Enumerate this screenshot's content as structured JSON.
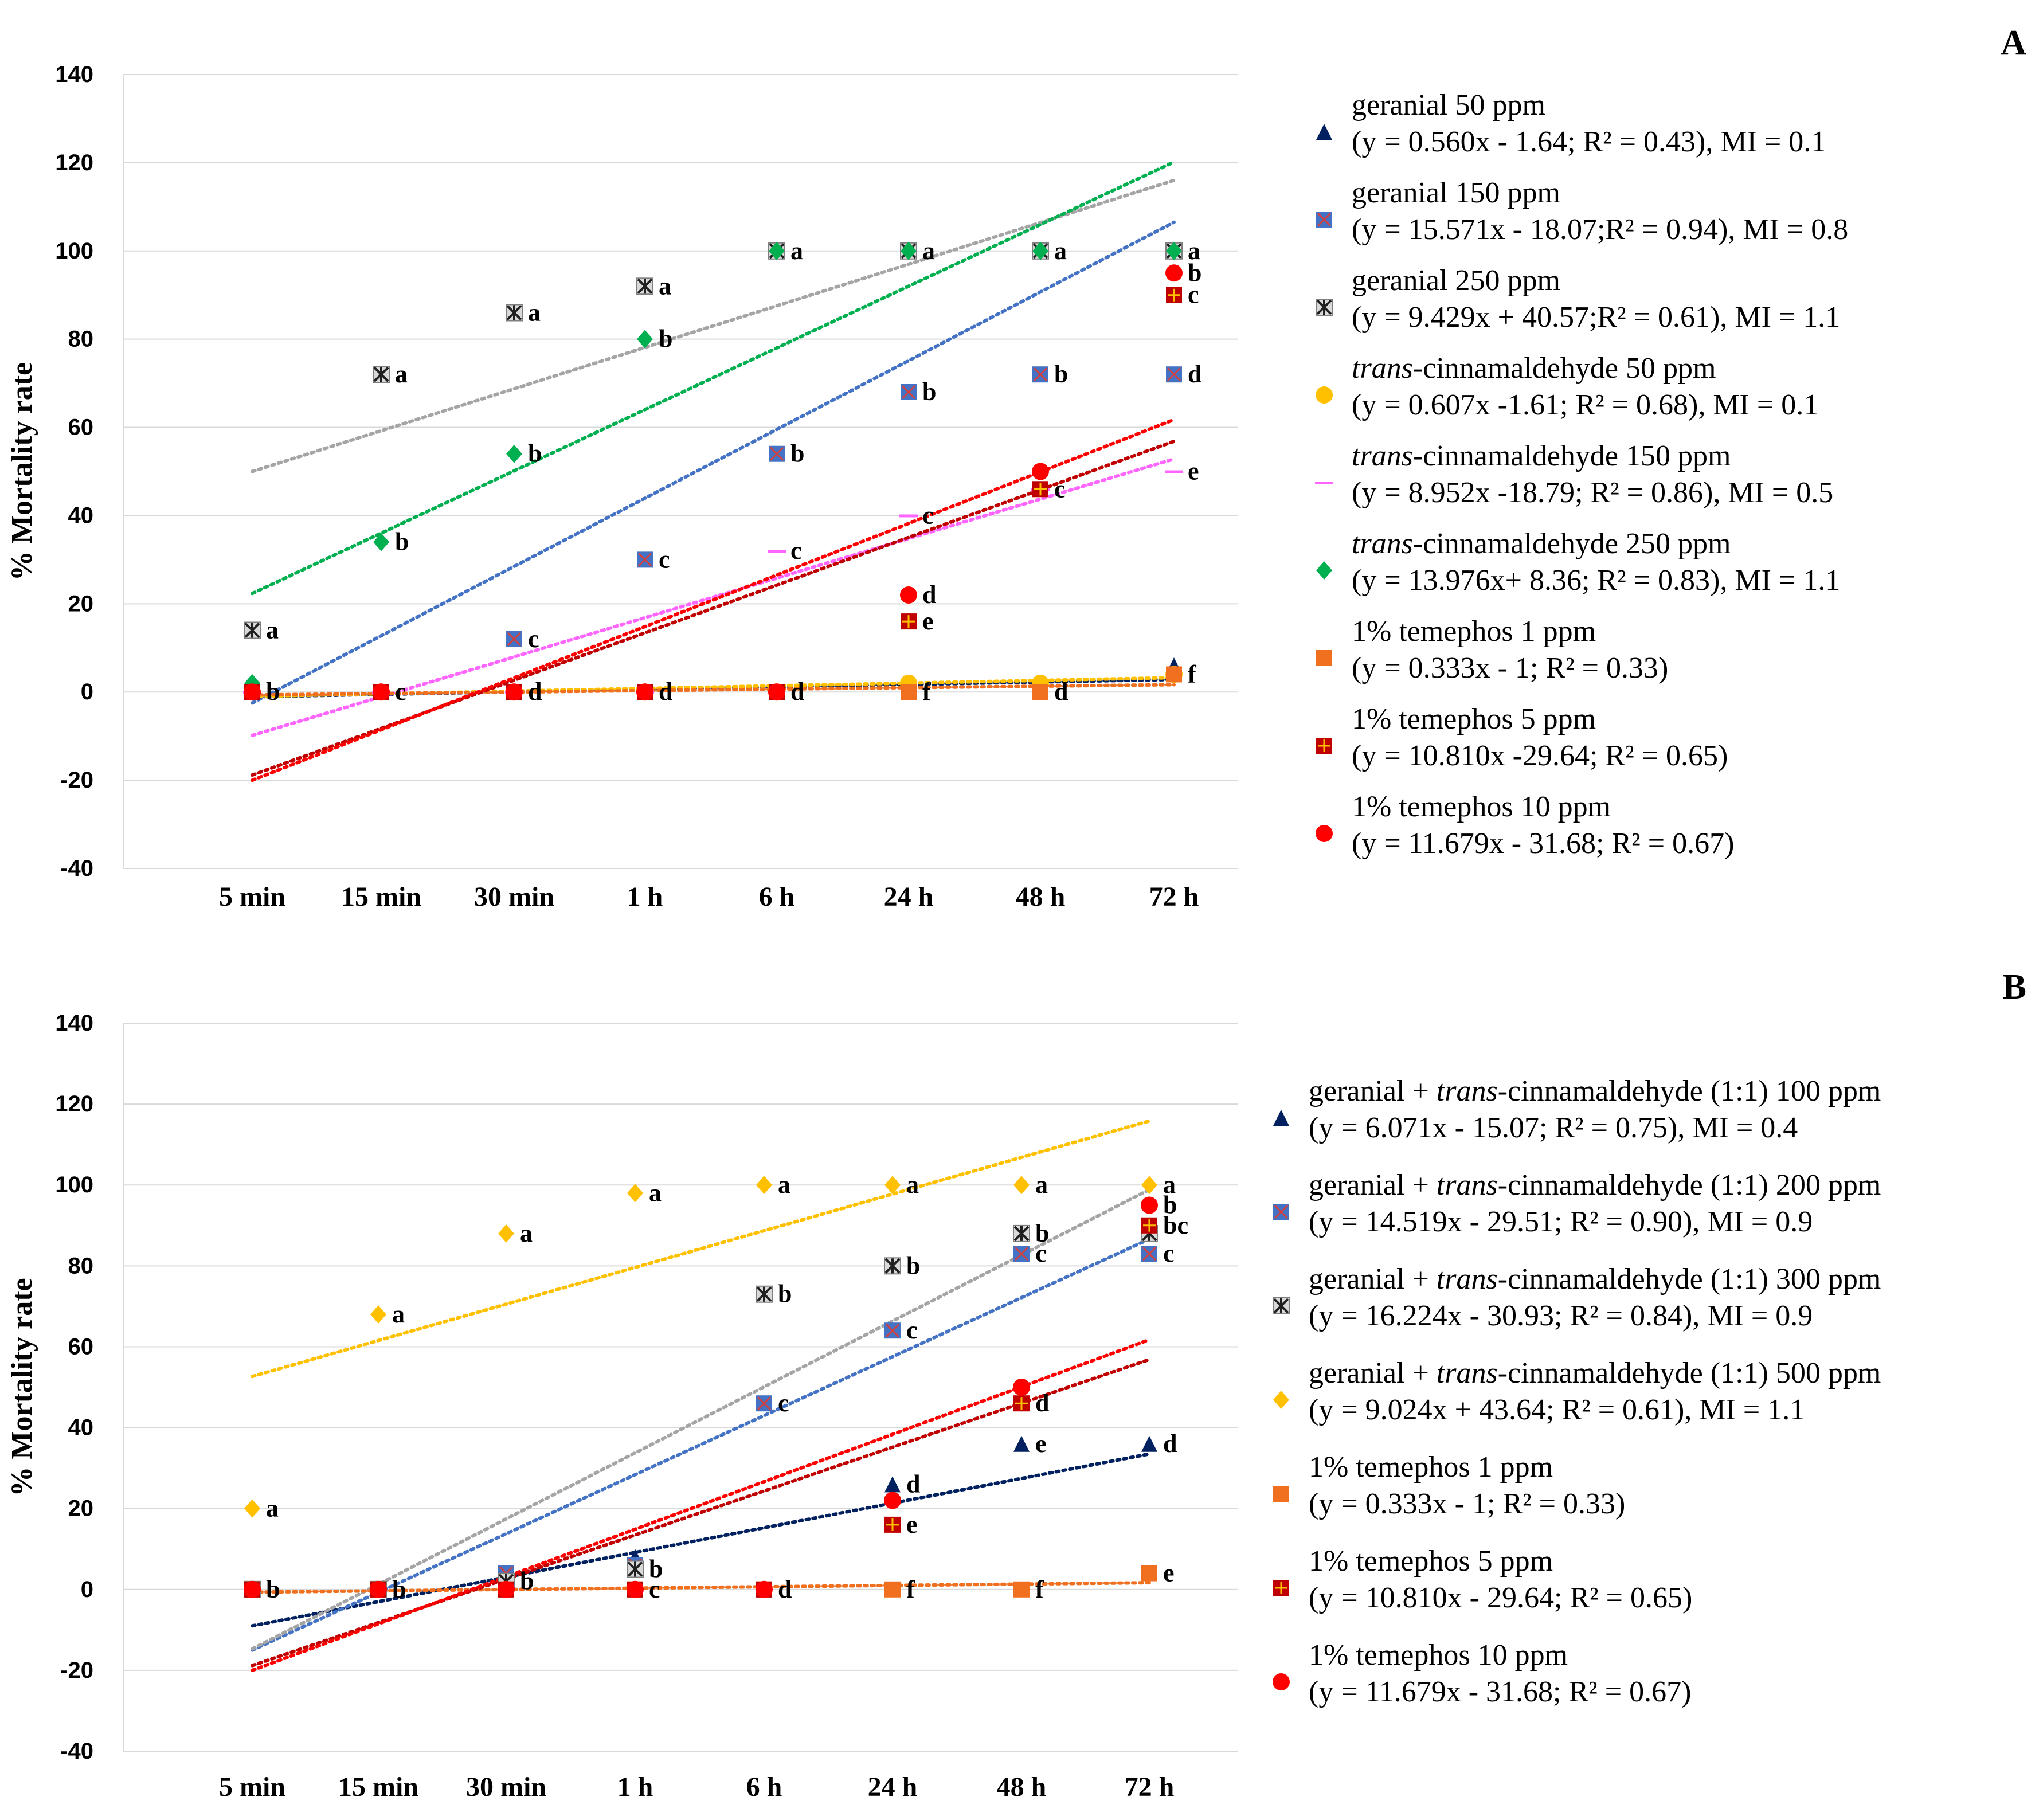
{
  "chart_data": [
    {
      "panel_label": "A",
      "type": "scatter",
      "ylabel": "% Mortality rate",
      "ylim": [
        -40,
        140
      ],
      "yticks": [
        -40,
        -20,
        0,
        20,
        40,
        60,
        80,
        100,
        120,
        140
      ],
      "categories": [
        "5 min",
        "15 min",
        "30 min",
        "1 h",
        "6 h",
        "24 h",
        "48 h",
        "72 h"
      ],
      "grid": true,
      "legend_position": "right",
      "series": [
        {
          "name": "geranial 50 ppm",
          "equation": "(y = 0.560x - 1.64; R² = 0.43), MI = 0.1",
          "color": "#002060",
          "marker": "triangle",
          "values": [
            0,
            0,
            0,
            0,
            0,
            0,
            0,
            6
          ],
          "letters": [
            "",
            "",
            "",
            "",
            "",
            "",
            "",
            ""
          ],
          "trend": [
            -1.08,
            2.84
          ]
        },
        {
          "name": "geranial 150 ppm",
          "equation": "(y = 15.571x - 18.07;R² = 0.94), MI = 0.8",
          "color": "#4472C4",
          "marker": "square-x",
          "values": [
            0,
            0,
            12,
            30,
            54,
            68,
            72,
            72
          ],
          "letters": [
            "",
            "",
            "c",
            "c",
            "b",
            "b",
            "b",
            "d"
          ],
          "trend": [
            -2.5,
            106.5
          ]
        },
        {
          "name": "geranial 250 ppm",
          "equation": "(y = 9.429x + 40.57;R² = 0.61), MI = 1.1",
          "color": "#A5A5A5",
          "marker": "asterisk-box",
          "values": [
            14,
            72,
            86,
            92,
            100,
            100,
            100,
            100
          ],
          "letters": [
            "a",
            "a",
            "a",
            "a",
            "",
            "",
            "",
            ""
          ],
          "trend": [
            50.0,
            116.0
          ]
        },
        {
          "name": "trans-cinnamaldehyde 50 ppm",
          "name_italic": "trans",
          "name_rest": "-cinnamaldehyde 50 ppm",
          "equation": "(y = 0.607x -1.61; R² = 0.68), MI = 0.1",
          "color": "#FFC000",
          "marker": "circle",
          "values": [
            0,
            0,
            0,
            0,
            0,
            2,
            2,
            4
          ],
          "letters": [
            "",
            "",
            "",
            "",
            "",
            "",
            "",
            ""
          ],
          "trend": [
            -1.0,
            3.25
          ]
        },
        {
          "name": "trans-cinnamaldehyde 150 ppm",
          "name_italic": "trans",
          "name_rest": "-cinnamaldehyde 150 ppm",
          "equation": "(y = 8.952x -18.79; R² = 0.86), MI = 0.5",
          "color": "#FF66FF",
          "marker": "dash",
          "values": [
            0,
            0,
            0,
            0,
            32,
            40,
            46,
            50
          ],
          "letters": [
            "",
            "",
            "",
            "",
            "c",
            "c",
            "",
            "e"
          ],
          "trend": [
            -9.84,
            52.83
          ]
        },
        {
          "name": "trans-cinnamaldehyde 250 ppm",
          "name_italic": "trans",
          "name_rest": "-cinnamaldehyde 250 ppm",
          "equation": "(y = 13.976x+ 8.36; R² = 0.83), MI = 1.1",
          "color": "#00B050",
          "marker": "diamond",
          "values": [
            2,
            34,
            54,
            80,
            100,
            100,
            100,
            100
          ],
          "letters": [
            "",
            "b",
            "b",
            "b",
            "a",
            "a",
            "a",
            "a"
          ],
          "trend": [
            22.34,
            120.17
          ]
        },
        {
          "name": "1% temephos 1 ppm",
          "equation": "(y = 0.333x - 1; R² = 0.33)",
          "color": "#F07020",
          "marker": "square",
          "values": [
            0,
            0,
            0,
            0,
            0,
            0,
            0,
            4
          ],
          "letters": [
            "",
            "",
            "",
            "",
            "",
            "f",
            "d",
            "f"
          ],
          "trend": [
            -0.67,
            1.66
          ]
        },
        {
          "name": "1% temephos 5 ppm",
          "equation": "(y = 10.810x -29.64; R² = 0.65)",
          "color": "#C00000",
          "marker": "square-cross",
          "values": [
            0,
            0,
            0,
            0,
            0,
            16,
            46,
            90
          ],
          "letters": [
            "",
            "",
            "",
            "",
            "",
            "e",
            "c",
            "c"
          ],
          "trend": [
            -18.83,
            56.84
          ]
        },
        {
          "name": "1% temephos 10 ppm",
          "equation": "(y = 11.679x - 31.68; R² = 0.67)",
          "color": "#FF0000",
          "marker": "circle",
          "values": [
            0,
            0,
            0,
            0,
            0,
            22,
            50,
            95
          ],
          "letters": [
            "b",
            "c",
            "d",
            "d",
            "d",
            "d",
            "",
            "b"
          ],
          "trend": [
            -20.0,
            61.75
          ]
        }
      ]
    },
    {
      "panel_label": "B",
      "type": "scatter",
      "ylabel": "% Mortality rate",
      "ylim": [
        -40,
        140
      ],
      "yticks": [
        -40,
        -20,
        0,
        20,
        40,
        60,
        80,
        100,
        120,
        140
      ],
      "categories": [
        "5 min",
        "15 min",
        "30 min",
        "1 h",
        "6 h",
        "24 h",
        "48 h",
        "72 h"
      ],
      "grid": true,
      "legend_position": "right",
      "series": [
        {
          "name": "geranial + trans-cinnamaldehyde (1:1) 100 ppm",
          "name_pre": "geranial + ",
          "name_italic": "trans",
          "name_rest": "-cinnamaldehyde (1:1) 100 ppm",
          "equation": "(y = 6.071x - 15.07; R² = 0.75), MI = 0.4",
          "color": "#002060",
          "marker": "triangle",
          "values": [
            0,
            0,
            4,
            8,
            0,
            26,
            36,
            36
          ],
          "letters": [
            "",
            "",
            "",
            "",
            "",
            "d",
            "e",
            "d"
          ],
          "trend": [
            -9.0,
            33.5
          ]
        },
        {
          "name": "geranial + trans-cinnamaldehyde (1:1) 200 ppm",
          "name_pre": "geranial + ",
          "name_italic": "trans",
          "name_rest": "-cinnamaldehyde (1:1) 200 ppm",
          "equation": "(y = 14.519x - 29.51; R² = 0.90), MI = 0.9",
          "color": "#4472C4",
          "marker": "square-x",
          "values": [
            0,
            0,
            4,
            6,
            46,
            64,
            83,
            83
          ],
          "letters": [
            "",
            "",
            "",
            "",
            "c",
            "c",
            "c",
            "c"
          ],
          "trend": [
            -15.0,
            86.63
          ]
        },
        {
          "name": "geranial + trans-cinnamaldehyde (1:1) 300 ppm",
          "name_pre": "geranial + ",
          "name_italic": "trans",
          "name_rest": "-cinnamaldehyde (1:1) 300 ppm",
          "equation": "(y = 16.224x - 30.93; R² = 0.84), MI = 0.9",
          "color": "#A5A5A5",
          "marker": "asterisk-box",
          "values": [
            0,
            0,
            2,
            5,
            73,
            80,
            88,
            88
          ],
          "letters": [
            "",
            "",
            "b",
            "b",
            "b",
            "b",
            "b",
            ""
          ],
          "trend": [
            -14.71,
            98.86
          ]
        },
        {
          "name": "geranial + trans-cinnamaldehyde (1:1) 500 ppm",
          "name_pre": "geranial + ",
          "name_italic": "trans",
          "name_rest": "-cinnamaldehyde (1:1) 500 ppm",
          "equation": "(y = 9.024x + 43.64; R² = 0.61), MI = 1.1",
          "color": "#FFC000",
          "marker": "diamond",
          "values": [
            20,
            68,
            88,
            98,
            100,
            100,
            100,
            100
          ],
          "letters": [
            "a",
            "a",
            "a",
            "a",
            "a",
            "a",
            "a",
            "a"
          ],
          "trend": [
            52.66,
            115.83
          ]
        },
        {
          "name": "1% temephos 1 ppm",
          "equation": "(y = 0.333x - 1; R² = 0.33)",
          "color": "#F07020",
          "marker": "square",
          "values": [
            0,
            0,
            0,
            0,
            0,
            0,
            0,
            4
          ],
          "letters": [
            "",
            "",
            "",
            "",
            "",
            "f",
            "f",
            "e"
          ],
          "trend": [
            -0.67,
            1.66
          ]
        },
        {
          "name": "1% temephos 5 ppm",
          "equation": "(y = 10.810x - 29.64; R² = 0.65)",
          "color": "#C00000",
          "marker": "square-cross",
          "values": [
            0,
            0,
            0,
            0,
            0,
            16,
            46,
            90
          ],
          "letters": [
            "",
            "",
            "",
            "",
            "",
            "e",
            "d",
            "bc"
          ],
          "trend": [
            -18.83,
            56.84
          ]
        },
        {
          "name": "1% temephos 10 ppm",
          "equation": "(y = 11.679x - 31.68; R² = 0.67)",
          "color": "#FF0000",
          "marker": "circle",
          "values": [
            0,
            0,
            0,
            0,
            0,
            22,
            50,
            95
          ],
          "letters": [
            "b",
            "b",
            "",
            "c",
            "d",
            "",
            "",
            "b"
          ],
          "trend": [
            -20.0,
            61.75
          ]
        }
      ]
    }
  ]
}
